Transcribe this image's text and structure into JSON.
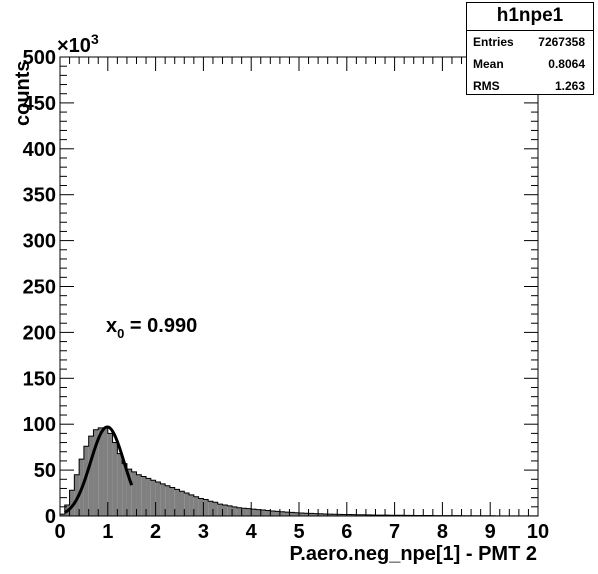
{
  "chart_data": {
    "type": "bar",
    "xlabel": "P.aero.neg_npe[1] - PMT 2",
    "ylabel": "counts",
    "exponent_label": "×10",
    "exponent_power": "3",
    "xlim": [
      0,
      10
    ],
    "ylim": [
      0,
      500
    ],
    "x_ticks": [
      "0",
      "1",
      "2",
      "3",
      "4",
      "5",
      "6",
      "7",
      "8",
      "9",
      "10"
    ],
    "y_ticks": [
      "0",
      "50",
      "100",
      "150",
      "200",
      "250",
      "300",
      "350",
      "400",
      "450",
      "500"
    ],
    "bin_width": 0.1,
    "hist_values": [
      2,
      12,
      28,
      45,
      62,
      76,
      87,
      94,
      96,
      96,
      90,
      80,
      68,
      57,
      51,
      48,
      45,
      43,
      41,
      39,
      37,
      35,
      33,
      31,
      29,
      27,
      25,
      23,
      21,
      19,
      18,
      16,
      15,
      13,
      12,
      11,
      10,
      9,
      8.5,
      8,
      7.5,
      7,
      6.5,
      6,
      5.5,
      5,
      4.6,
      4.2,
      3.9,
      3.6,
      3.3,
      3.0,
      2.8,
      2.6,
      2.4,
      2.2,
      2.0,
      1.9,
      1.8,
      1.7,
      1.6,
      1.5,
      1.4,
      1.3,
      1.2,
      1.1,
      1.0,
      0.95,
      0.9,
      0.85,
      0.8,
      0.75,
      0.7,
      0.65,
      0.6,
      0.55,
      0.5,
      0.48,
      0.46,
      0.44,
      0.42,
      0.4,
      0.38,
      0.36,
      0.34,
      0.32,
      0.3,
      0.28,
      0.26,
      0.24,
      0.22,
      0.2,
      0.19,
      0.18,
      0.17,
      0.16,
      0.15,
      0.14,
      0.13,
      0.12
    ],
    "fit": {
      "type": "gaussian",
      "mean": 0.99,
      "sigma": 0.35,
      "amplitude": 97,
      "range": [
        0.1,
        1.5
      ]
    },
    "fill_color": "#808080",
    "line_color": "#000000",
    "annotation": {
      "label": "x",
      "subscript": "0",
      "text": " = 0.990"
    }
  },
  "stats": {
    "title": "h1npe1",
    "rows": [
      {
        "label": "Entries",
        "value": "7267358"
      },
      {
        "label": "Mean",
        "value": "0.8064"
      },
      {
        "label": "RMS",
        "value": "1.263"
      }
    ]
  }
}
